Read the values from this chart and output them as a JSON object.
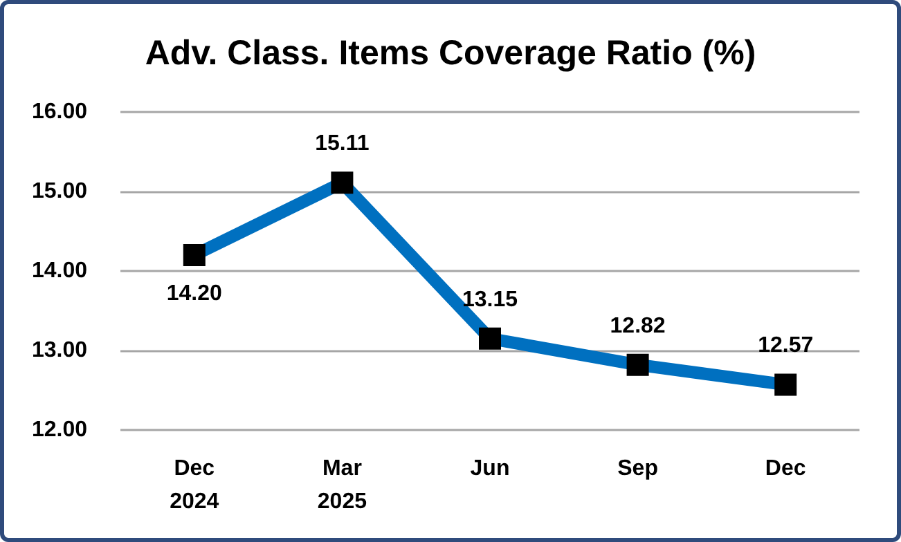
{
  "chart_data": {
    "type": "line",
    "title": "Adv. Class. Items Coverage Ratio (%)",
    "categories": [
      "Dec\n2024",
      "Mar\n2025",
      "Jun",
      "Sep",
      "Dec"
    ],
    "series": [
      {
        "color": "#0070c0",
        "values": [
          14.2,
          15.11,
          13.15,
          12.82,
          12.57
        ],
        "value_labels": [
          "14.20",
          "15.11",
          "13.15",
          "12.82",
          "12.57"
        ]
      }
    ],
    "ylim": [
      12,
      16
    ],
    "yticks": [
      {
        "value": 12,
        "label": "12.00"
      },
      {
        "value": 13,
        "label": "13.00"
      },
      {
        "value": 14,
        "label": "14.00"
      },
      {
        "value": 15,
        "label": "15.00"
      },
      {
        "value": 16,
        "label": "16.00"
      }
    ],
    "grid": "y",
    "marker": "square",
    "line_style": "solid"
  }
}
